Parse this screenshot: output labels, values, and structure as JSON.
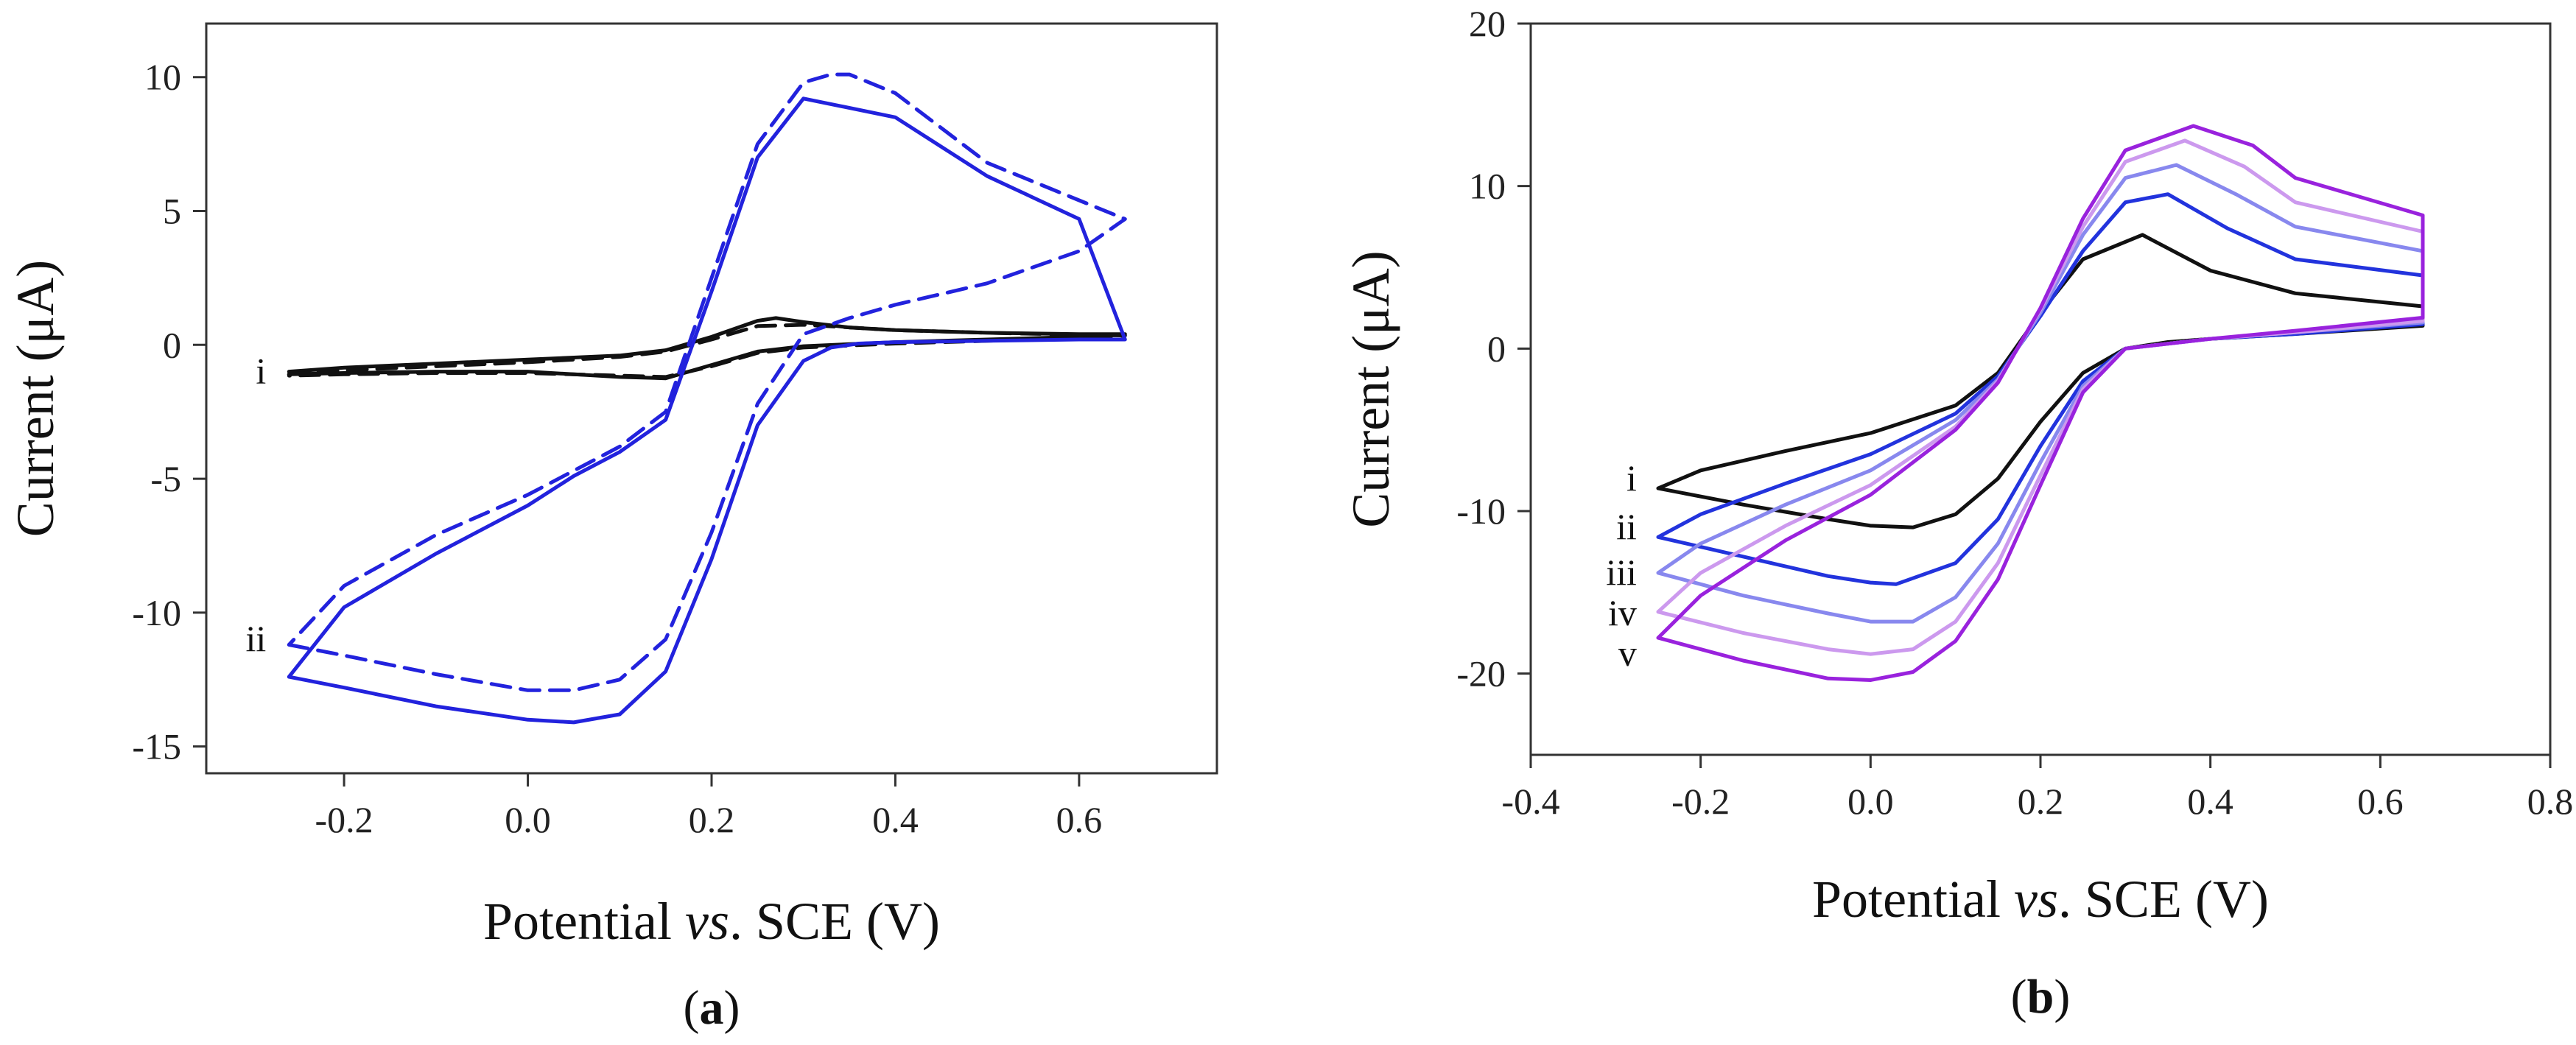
{
  "chart_data": [
    {
      "panel_label": "a",
      "type": "line",
      "xlabel_prefix": "Potential ",
      "xlabel_italic": "vs",
      "xlabel_suffix": ". SCE (V)",
      "ylabel": "Current (μA)",
      "xlim": [
        -0.35,
        0.75
      ],
      "ylim": [
        -16,
        12
      ],
      "xticks": [
        -0.2,
        0.0,
        0.2,
        0.4,
        0.6
      ],
      "xtick_labels": [
        "-0.2",
        "0.0",
        "0.2",
        "0.4",
        "0.6"
      ],
      "yticks": [
        -15,
        -10,
        -5,
        0,
        5,
        10
      ],
      "ytick_labels": [
        "-15",
        "-10",
        "-5",
        "0",
        "5",
        "10"
      ],
      "curve_labels": [
        {
          "text": "i",
          "x": -0.28,
          "y": -1.0
        },
        {
          "text": "ii",
          "x": -0.28,
          "y": -11.0
        }
      ],
      "series": [
        {
          "name": "i (solid)",
          "color": "#111111",
          "dashed": false,
          "x": [
            -0.26,
            -0.2,
            -0.1,
            0.0,
            0.1,
            0.15,
            0.2,
            0.25,
            0.27,
            0.3,
            0.35,
            0.4,
            0.5,
            0.6,
            0.65,
            0.6,
            0.5,
            0.4,
            0.3,
            0.25,
            0.2,
            0.15,
            0.1,
            0.0,
            -0.1,
            -0.2,
            -0.26
          ],
          "y": [
            -1.0,
            -0.85,
            -0.7,
            -0.55,
            -0.4,
            -0.2,
            0.3,
            0.9,
            1.0,
            0.85,
            0.65,
            0.55,
            0.45,
            0.4,
            0.4,
            0.3,
            0.2,
            0.1,
            -0.05,
            -0.25,
            -0.75,
            -1.25,
            -1.2,
            -1.0,
            -1.0,
            -1.05,
            -1.1
          ]
        },
        {
          "name": "i (dashed)",
          "color": "#111111",
          "dashed": true,
          "x": [
            -0.26,
            -0.2,
            -0.1,
            0.0,
            0.1,
            0.15,
            0.2,
            0.25,
            0.3,
            0.4,
            0.5,
            0.6,
            0.65,
            0.6,
            0.5,
            0.4,
            0.3,
            0.25,
            0.2,
            0.15,
            0.1,
            0.0,
            -0.1,
            -0.2,
            -0.26
          ],
          "y": [
            -1.1,
            -0.95,
            -0.8,
            -0.65,
            -0.45,
            -0.25,
            0.2,
            0.7,
            0.75,
            0.55,
            0.45,
            0.38,
            0.35,
            0.25,
            0.15,
            0.05,
            -0.1,
            -0.3,
            -0.8,
            -1.2,
            -1.15,
            -1.05,
            -1.05,
            -1.1,
            -1.15
          ]
        },
        {
          "name": "ii (solid)",
          "color": "#2222dd",
          "dashed": false,
          "x": [
            -0.26,
            -0.2,
            -0.1,
            0.0,
            0.05,
            0.1,
            0.15,
            0.2,
            0.25,
            0.3,
            0.33,
            0.36,
            0.4,
            0.5,
            0.6,
            0.65,
            0.6,
            0.5,
            0.4,
            0.3,
            0.25,
            0.2,
            0.15,
            0.1,
            0.05,
            0.0,
            -0.1,
            -0.2,
            -0.26
          ],
          "y": [
            -12.4,
            -12.8,
            -13.5,
            -14.0,
            -14.1,
            -13.8,
            -12.2,
            -8.0,
            -3.0,
            -0.6,
            -0.1,
            0.05,
            0.1,
            0.15,
            0.2,
            0.2,
            4.7,
            6.3,
            8.5,
            9.2,
            7.0,
            2.0,
            -2.8,
            -4.0,
            -4.9,
            -6.0,
            -7.8,
            -9.8,
            -12.4
          ]
        },
        {
          "name": "ii (dashed)",
          "color": "#2222dd",
          "dashed": true,
          "x": [
            -0.26,
            -0.2,
            -0.1,
            0.0,
            0.05,
            0.1,
            0.15,
            0.2,
            0.25,
            0.3,
            0.35,
            0.4,
            0.5,
            0.6,
            0.65,
            0.6,
            0.5,
            0.4,
            0.35,
            0.33,
            0.3,
            0.25,
            0.2,
            0.15,
            0.1,
            0.05,
            0.0,
            -0.1,
            -0.2,
            -0.26
          ],
          "y": [
            -11.2,
            -11.6,
            -12.3,
            -12.9,
            -12.9,
            -12.5,
            -11.0,
            -7.0,
            -2.2,
            0.4,
            1.0,
            1.5,
            2.3,
            3.5,
            4.7,
            5.4,
            6.8,
            9.4,
            10.1,
            10.1,
            9.8,
            7.5,
            2.5,
            -2.5,
            -3.8,
            -4.7,
            -5.6,
            -7.1,
            -9.0,
            -11.2
          ]
        }
      ]
    },
    {
      "panel_label": "b",
      "type": "line",
      "xlabel_prefix": "Potential ",
      "xlabel_italic": "vs",
      "xlabel_suffix": ". SCE (V)",
      "ylabel": "Current (μA)",
      "xlim": [
        -0.4,
        0.8
      ],
      "ylim": [
        -25,
        20
      ],
      "xticks": [
        -0.4,
        -0.2,
        0.0,
        0.2,
        0.4,
        0.6,
        0.8
      ],
      "xtick_labels": [
        "-0.4",
        "-0.2",
        "0.0",
        "0.2",
        "0.4",
        "0.6",
        "0.8"
      ],
      "yticks": [
        -20,
        -10,
        0,
        10,
        20
      ],
      "ytick_labels": [
        "-20",
        "-10",
        "0",
        "10",
        "20"
      ],
      "curve_labels": [
        {
          "text": "i",
          "x": -0.27,
          "y": -8.0
        },
        {
          "text": "ii",
          "x": -0.27,
          "y": -11.0
        },
        {
          "text": "iii",
          "x": -0.27,
          "y": -13.8
        },
        {
          "text": "iv",
          "x": -0.27,
          "y": -16.3
        },
        {
          "text": "v",
          "x": -0.27,
          "y": -18.8
        }
      ],
      "series": [
        {
          "name": "i",
          "color": "#111111",
          "dashed": false,
          "x": [
            -0.25,
            -0.15,
            -0.05,
            0.0,
            0.05,
            0.1,
            0.15,
            0.2,
            0.25,
            0.3,
            0.35,
            0.4,
            0.5,
            0.65,
            0.65,
            0.5,
            0.4,
            0.32,
            0.25,
            0.2,
            0.15,
            0.1,
            0.0,
            -0.1,
            -0.2,
            -0.25
          ],
          "y": [
            -8.6,
            -9.6,
            -10.5,
            -10.9,
            -11.0,
            -10.2,
            -8.0,
            -4.5,
            -1.5,
            0.0,
            0.4,
            0.6,
            0.9,
            1.4,
            2.6,
            3.4,
            4.8,
            7.0,
            5.5,
            2.2,
            -1.5,
            -3.5,
            -5.2,
            -6.3,
            -7.5,
            -8.6
          ]
        },
        {
          "name": "ii",
          "color": "#2233dd",
          "dashed": false,
          "x": [
            -0.25,
            -0.15,
            -0.05,
            0.0,
            0.03,
            0.1,
            0.15,
            0.2,
            0.25,
            0.3,
            0.4,
            0.5,
            0.65,
            0.65,
            0.5,
            0.42,
            0.35,
            0.3,
            0.25,
            0.2,
            0.15,
            0.1,
            0.0,
            -0.1,
            -0.2,
            -0.25
          ],
          "y": [
            -11.6,
            -12.8,
            -14.0,
            -14.4,
            -14.5,
            -13.2,
            -10.5,
            -6.0,
            -2.0,
            0.0,
            0.6,
            0.9,
            1.5,
            4.5,
            5.5,
            7.4,
            9.5,
            9.0,
            6.0,
            2.0,
            -1.7,
            -4.0,
            -6.5,
            -8.3,
            -10.2,
            -11.6
          ]
        },
        {
          "name": "iii",
          "color": "#8888ee",
          "dashed": false,
          "x": [
            -0.25,
            -0.15,
            -0.05,
            0.0,
            0.05,
            0.1,
            0.15,
            0.2,
            0.25,
            0.3,
            0.4,
            0.5,
            0.65,
            0.65,
            0.5,
            0.43,
            0.36,
            0.3,
            0.25,
            0.2,
            0.15,
            0.1,
            0.0,
            -0.1,
            -0.2,
            -0.25
          ],
          "y": [
            -13.8,
            -15.2,
            -16.3,
            -16.8,
            -16.8,
            -15.3,
            -12.0,
            -7.0,
            -2.3,
            0.0,
            0.6,
            1.0,
            1.6,
            6.0,
            7.5,
            9.5,
            11.3,
            10.5,
            7.0,
            2.2,
            -1.9,
            -4.4,
            -7.5,
            -9.6,
            -12.0,
            -13.8
          ]
        },
        {
          "name": "iv",
          "color": "#cc99ee",
          "dashed": false,
          "x": [
            -0.25,
            -0.15,
            -0.05,
            0.0,
            0.05,
            0.1,
            0.15,
            0.2,
            0.25,
            0.3,
            0.4,
            0.5,
            0.65,
            0.65,
            0.5,
            0.44,
            0.37,
            0.3,
            0.25,
            0.2,
            0.15,
            0.1,
            0.0,
            -0.1,
            -0.2,
            -0.25
          ],
          "y": [
            -16.2,
            -17.5,
            -18.5,
            -18.8,
            -18.5,
            -16.8,
            -13.2,
            -7.8,
            -2.5,
            0.0,
            0.6,
            1.0,
            1.7,
            7.2,
            9.0,
            11.2,
            12.8,
            11.5,
            7.5,
            2.4,
            -2.0,
            -4.8,
            -8.4,
            -10.9,
            -13.8,
            -16.2
          ]
        },
        {
          "name": "v",
          "color": "#9922dd",
          "dashed": false,
          "x": [
            -0.25,
            -0.15,
            -0.05,
            0.0,
            0.05,
            0.1,
            0.15,
            0.2,
            0.25,
            0.3,
            0.4,
            0.5,
            0.65,
            0.65,
            0.5,
            0.45,
            0.38,
            0.3,
            0.25,
            0.2,
            0.15,
            0.1,
            0.0,
            -0.1,
            -0.2,
            -0.25
          ],
          "y": [
            -17.8,
            -19.2,
            -20.3,
            -20.4,
            -19.9,
            -18.0,
            -14.2,
            -8.4,
            -2.7,
            0.0,
            0.6,
            1.1,
            1.9,
            8.2,
            10.5,
            12.5,
            13.7,
            12.2,
            8.0,
            2.5,
            -2.1,
            -5.0,
            -9.0,
            -11.8,
            -15.2,
            -17.8
          ]
        }
      ]
    }
  ]
}
